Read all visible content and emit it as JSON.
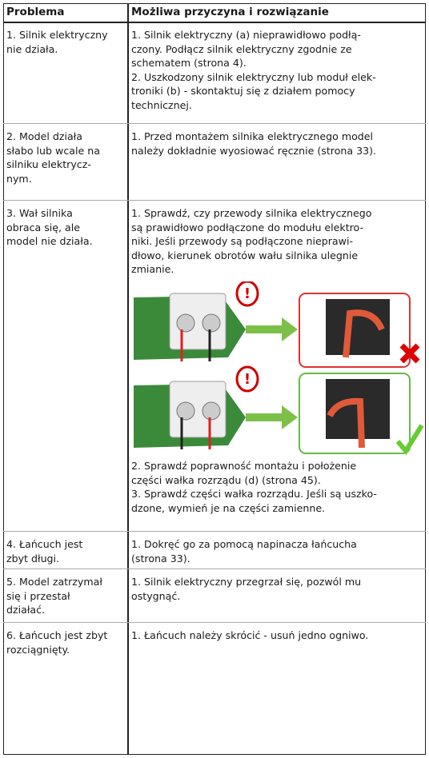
{
  "table": {
    "header": [
      "Problema",
      "Możliwa przyczyna i rozwiązanie"
    ],
    "rows": [
      {
        "problem": [
          "1. Silnik elektryczny",
          "nie działa."
        ],
        "solution": [
          "1. Silnik elektryczny (a) nieprawidłowo podłą-",
          "czony. Podłącz silnik elektryczny zgodnie ze",
          "schematem (strona 4).",
          "2. Uszkodzony silnik elektryczny lub moduł elek-",
          "troniki (b) - skontaktuj się z działem pomocy",
          "technicznej."
        ]
      },
      {
        "problem": [
          "2. Model działa",
          "słabo lub wcale na",
          "silniku elektrycz-",
          "nym."
        ],
        "solution": [
          "1. Przed montażem silnika elektrycznego model",
          "należy dokładnie wyosiować ręcznie (strona 33)."
        ]
      },
      {
        "problem": [
          "3. Wał silnika",
          "obraca się, ale",
          "model nie działa."
        ],
        "solution": [
          "1. Sprawdź, czy przewody silnika elektrycznego",
          "są prawidłowo podłączone do modułu elektro-",
          "niki. Jeśli przewody są podłączone nieprawi-",
          "dłowo, kierunek obrotów wału silnika ulegnie",
          "zmianie."
        ],
        "solution_after": [
          "2. Sprawdź poprawność montażu i położenie",
          "części wałka rozrządu (d) (strona 45).",
          "3. Sprawdź części wałka rozrządu. Jeśli są uszko-",
          "dzone, wymień je na części zamienne."
        ]
      },
      {
        "problem": [
          "4. Łańcuch jest",
          "zbyt długi."
        ],
        "solution": [
          "1. Dokręć go za pomocą napinacza łańcucha",
          "(strona 33)."
        ]
      },
      {
        "problem": [
          "5. Model zatrzymał",
          "się i przestał",
          "działać."
        ],
        "solution": [
          "1. Silnik elektryczny przegrzał się, pozwól mu",
          "ostygnąć."
        ]
      },
      {
        "problem": [
          "6. Łańcuch jest zbyt",
          "rozciągnięty."
        ],
        "solution": [
          "1. Łańcuch należy skrócić - usuń jedno ogniwo."
        ]
      }
    ]
  }
}
